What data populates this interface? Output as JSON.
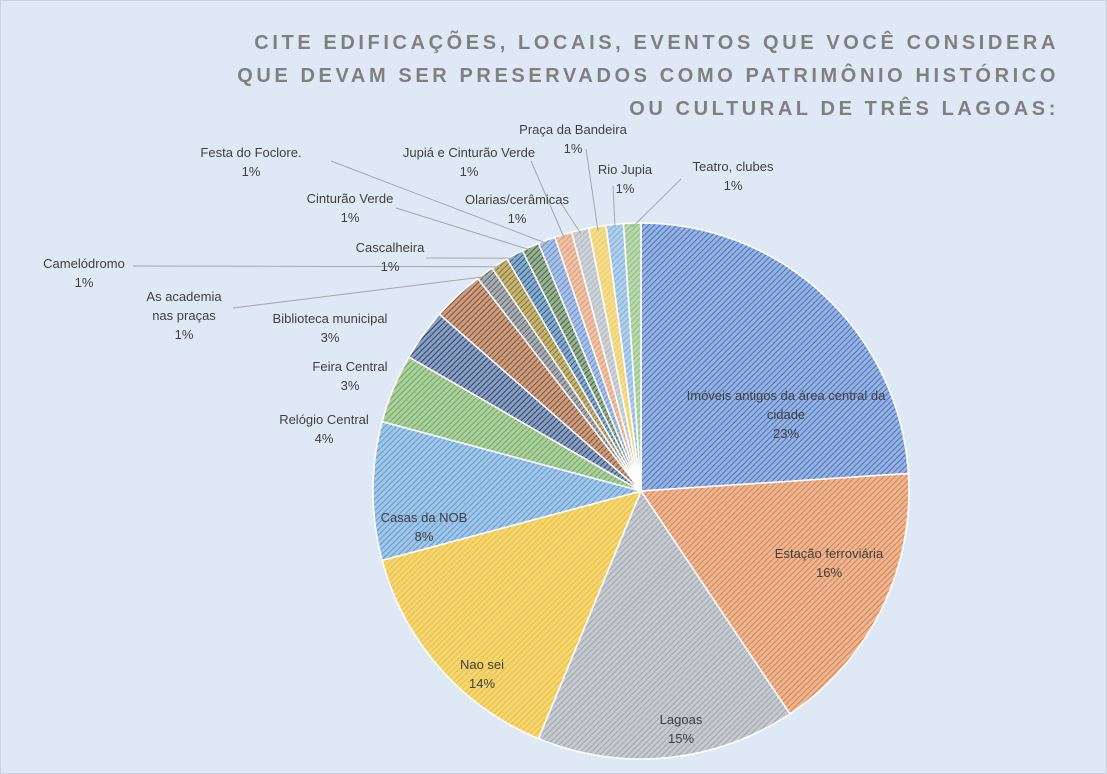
{
  "chart_data": {
    "type": "pie",
    "title": "CITE EDIFICAÇÕES, LOCAIS, EVENTOS QUE VOCÊ CONSIDERA QUE DEVAM SER PRESERVADOS COMO PATRIMÔNIO HISTÓRICO OU CULTURAL DE TRÊS LAGOAS:",
    "categories": [
      "Imóveis antigos da área central da cidade",
      "Estação ferroviária",
      "Lagoas",
      "Nao sei",
      "Casas da NOB",
      "Relógio Central",
      "Feira Central",
      "Biblioteca municipal",
      "As academia nas praças",
      "Camelódromo",
      "Cascalheira",
      "Cinturão Verde",
      "Festa do Foclore.",
      "Jupiá e Cinturão Verde",
      "Olarias/cerâmicas",
      "Praça da Bandeira",
      "Rio Jupia",
      "Teatro, clubes"
    ],
    "values": [
      23,
      16,
      15,
      14,
      8,
      4,
      3,
      3,
      1,
      1,
      1,
      1,
      1,
      1,
      1,
      1,
      1,
      1
    ],
    "value_labels": [
      "23%",
      "16%",
      "15%",
      "14%",
      "8%",
      "4%",
      "3%",
      "3%",
      "1%",
      "1%",
      "1%",
      "1%",
      "1%",
      "1%",
      "1%",
      "1%",
      "1%",
      "1%"
    ],
    "colors": [
      "#4472c4",
      "#ed7d31",
      "#a5a5a5",
      "#ffc000",
      "#5b9bd5",
      "#70ad47",
      "#264478",
      "#9e480e",
      "#636363",
      "#997300",
      "#255e91",
      "#43682b",
      "#698ed0",
      "#f1975a",
      "#b7b7b7",
      "#ffcd33",
      "#7cafdd",
      "#8cc168"
    ]
  }
}
